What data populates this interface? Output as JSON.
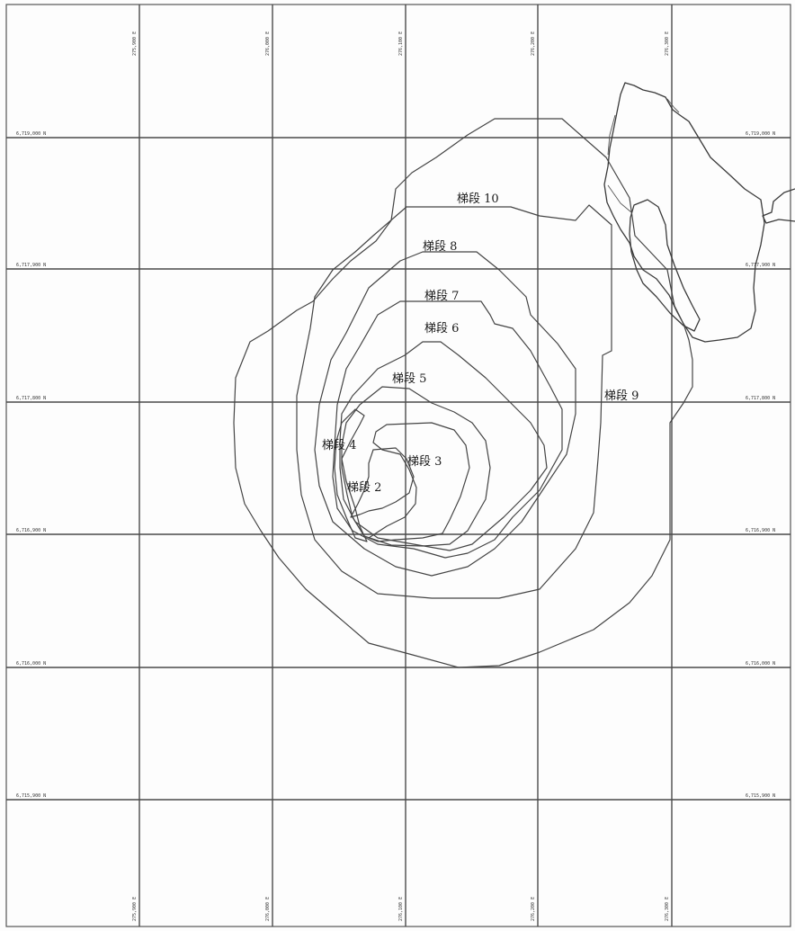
{
  "map": {
    "grid": {
      "northing_labels": [
        "6,719,000 N",
        "6,717,900 N",
        "6,717,800 N",
        "6,716,900 N",
        "6,716,000 N",
        "6,715,900 N"
      ],
      "easting_labels": [
        "275,900 E",
        "276,000 E",
        "276,100 E",
        "276,200 E",
        "276,300 E"
      ]
    },
    "benches": [
      {
        "id": "bench-2",
        "label": "梯段 2"
      },
      {
        "id": "bench-3",
        "label": "梯段 3"
      },
      {
        "id": "bench-4",
        "label": "梯段 4"
      },
      {
        "id": "bench-5",
        "label": "梯段 5"
      },
      {
        "id": "bench-6",
        "label": "梯段 6"
      },
      {
        "id": "bench-7",
        "label": "梯段 7"
      },
      {
        "id": "bench-8",
        "label": "梯段 8"
      },
      {
        "id": "bench-9",
        "label": "梯段 9"
      },
      {
        "id": "bench-10",
        "label": "梯段 10"
      }
    ],
    "colors": {
      "line": "#444444",
      "background": "#fdfdfd"
    }
  }
}
